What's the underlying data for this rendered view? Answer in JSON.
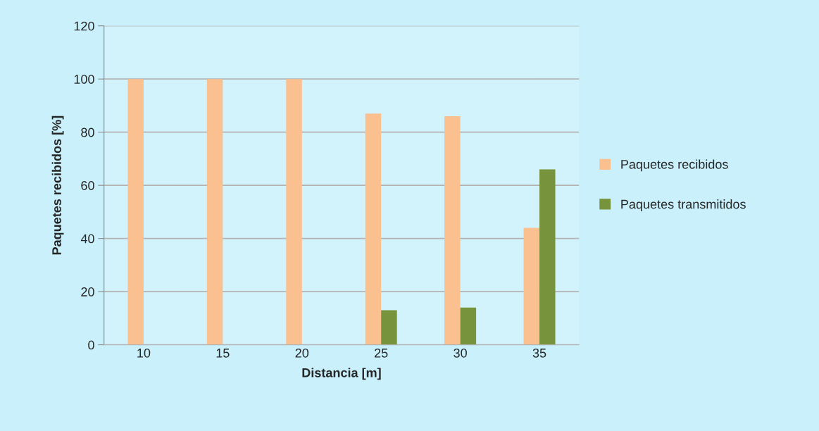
{
  "chart_data": {
    "type": "bar",
    "xlabel": "Distancia [m]",
    "ylabel": "Paquetes recibidos [%]",
    "categories": [
      "10",
      "15",
      "20",
      "25",
      "30",
      "35"
    ],
    "series": [
      {
        "name": "Paquetes recibidos",
        "color": "#fac090",
        "values": [
          100,
          100,
          100,
          87,
          86,
          44
        ]
      },
      {
        "name": "Paquetes transmitidos",
        "color": "#77933c",
        "values": [
          0,
          0,
          0,
          13,
          14,
          66
        ]
      }
    ],
    "ylim": [
      0,
      120
    ],
    "yticks": [
      0,
      20,
      40,
      60,
      80,
      100,
      120
    ],
    "grid": "y",
    "legend": "right"
  }
}
